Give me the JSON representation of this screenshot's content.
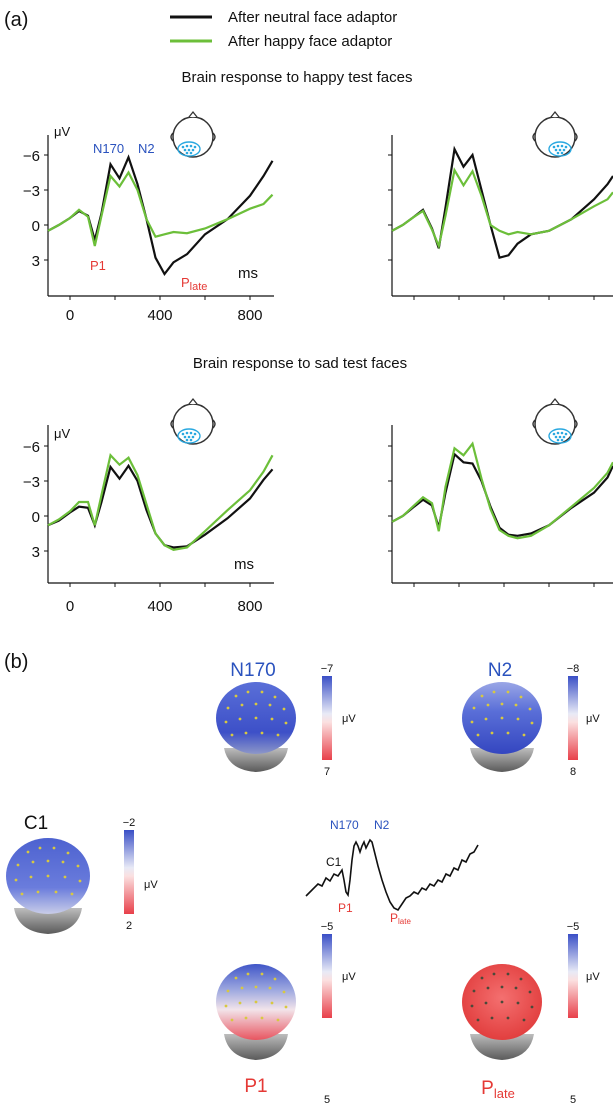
{
  "panel_a_label": "(a)",
  "panel_b_label": "(b)",
  "legend": [
    {
      "label": "After neutral face adaptor",
      "color": "#111111"
    },
    {
      "label": "After happy face adaptor",
      "color": "#6cbf3a"
    }
  ],
  "headings": {
    "happy": "Brain response to happy test faces",
    "sad": "Brain response to sad test faces"
  },
  "axis": {
    "y_unit": "μV",
    "x_unit": "ms",
    "y_ticks": [
      "−6",
      "−3",
      "0",
      "3"
    ],
    "x_ticks": [
      "0",
      "400",
      "800"
    ]
  },
  "erp_labels": {
    "n170": "N170",
    "n2": "N2",
    "p1": "P1",
    "plate_main": "P",
    "plate_sub": "late"
  },
  "chart_data": [
    {
      "type": "line",
      "id": "happy-left",
      "ylim": [
        5,
        -7
      ],
      "xlim": [
        -100,
        900
      ],
      "series": [
        {
          "name": "After neutral face adaptor",
          "x": [
            -100,
            -50,
            0,
            40,
            80,
            110,
            140,
            180,
            220,
            260,
            300,
            340,
            380,
            420,
            460,
            520,
            600,
            700,
            800,
            860,
            900
          ],
          "y": [
            0.5,
            0,
            -0.6,
            -1.2,
            -0.8,
            1.3,
            -1,
            -5.2,
            -4,
            -5.8,
            -3.5,
            -0.5,
            2.8,
            4.2,
            3.2,
            2.5,
            0.8,
            -0.5,
            -2.5,
            -4.2,
            -5.5
          ]
        },
        {
          "name": "After happy face adaptor",
          "x": [
            -100,
            -50,
            0,
            40,
            80,
            110,
            140,
            180,
            220,
            260,
            300,
            340,
            380,
            420,
            460,
            520,
            600,
            700,
            800,
            860,
            900
          ],
          "y": [
            0.5,
            0,
            -0.6,
            -1.3,
            -0.7,
            1.8,
            -0.8,
            -4.2,
            -3.3,
            -4.5,
            -3,
            -0.5,
            1,
            0.8,
            0.6,
            0.7,
            0.3,
            -0.5,
            -1.4,
            -1.8,
            -2.6
          ]
        }
      ]
    },
    {
      "type": "line",
      "id": "happy-right",
      "ylim": [
        5,
        -7
      ],
      "xlim": [
        -100,
        900
      ],
      "series": [
        {
          "name": "After neutral face adaptor",
          "x": [
            -100,
            -50,
            0,
            40,
            80,
            110,
            140,
            180,
            220,
            260,
            300,
            340,
            380,
            420,
            460,
            520,
            600,
            700,
            800,
            860,
            900
          ],
          "y": [
            0.5,
            0,
            -0.7,
            -1.3,
            0.3,
            2,
            -1.5,
            -6.5,
            -5,
            -6,
            -3,
            0,
            2.8,
            2.6,
            1.6,
            0.8,
            0.5,
            -0.5,
            -2.2,
            -3.5,
            -4.2
          ]
        },
        {
          "name": "After happy face adaptor",
          "x": [
            -100,
            -50,
            0,
            40,
            80,
            110,
            140,
            180,
            220,
            260,
            300,
            340,
            380,
            420,
            460,
            520,
            600,
            700,
            800,
            860,
            900
          ],
          "y": [
            0.5,
            0,
            -0.7,
            -1.2,
            0.4,
            1.8,
            -0.8,
            -4.7,
            -3.4,
            -4.6,
            -2.5,
            0,
            0.5,
            0.8,
            0.6,
            0.8,
            0.5,
            -0.5,
            -1.6,
            -2.2,
            -2.8
          ]
        }
      ]
    },
    {
      "type": "line",
      "id": "sad-left",
      "ylim": [
        5,
        -7
      ],
      "xlim": [
        -100,
        900
      ],
      "series": [
        {
          "name": "After neutral face adaptor",
          "x": [
            -100,
            -50,
            0,
            40,
            80,
            110,
            140,
            180,
            220,
            260,
            300,
            340,
            380,
            420,
            460,
            520,
            600,
            700,
            800,
            860,
            900
          ],
          "y": [
            0.8,
            0.4,
            -0.3,
            -0.8,
            -0.7,
            0.8,
            -1.2,
            -4.2,
            -3.2,
            -4.3,
            -3,
            -0.5,
            1.5,
            2.5,
            2.7,
            2.6,
            1.6,
            0.2,
            -1.5,
            -3.1,
            -4
          ]
        },
        {
          "name": "After happy face adaptor",
          "x": [
            -100,
            -50,
            0,
            40,
            80,
            110,
            140,
            180,
            220,
            260,
            300,
            340,
            380,
            420,
            460,
            520,
            600,
            700,
            800,
            860,
            900
          ],
          "y": [
            0.8,
            0.3,
            -0.4,
            -1.2,
            -1.2,
            0.8,
            -1.8,
            -5.2,
            -4.4,
            -5,
            -3.5,
            -1,
            1.5,
            2.5,
            2.9,
            2.7,
            1.3,
            -0.5,
            -2.2,
            -3.8,
            -5.2
          ]
        }
      ]
    },
    {
      "type": "line",
      "id": "sad-right",
      "ylim": [
        5,
        -7
      ],
      "xlim": [
        -100,
        900
      ],
      "series": [
        {
          "name": "After neutral face adaptor",
          "x": [
            -100,
            -50,
            0,
            40,
            80,
            110,
            140,
            180,
            220,
            260,
            300,
            340,
            380,
            420,
            460,
            520,
            600,
            700,
            800,
            860,
            900
          ],
          "y": [
            0.5,
            0,
            -0.8,
            -1.4,
            -0.9,
            1,
            -2,
            -5.3,
            -4.6,
            -4.5,
            -3,
            -0.8,
            1,
            1.6,
            1.7,
            1.5,
            0.8,
            -0.7,
            -2,
            -3.3,
            -4.3
          ]
        },
        {
          "name": "After happy face adaptor",
          "x": [
            -100,
            -50,
            0,
            40,
            80,
            110,
            140,
            180,
            220,
            260,
            300,
            340,
            380,
            420,
            460,
            520,
            600,
            700,
            800,
            860,
            900
          ],
          "y": [
            0.5,
            0,
            -0.9,
            -1.6,
            -1.1,
            1.3,
            -2.5,
            -5.8,
            -5.2,
            -6.2,
            -3.2,
            -0.6,
            1.2,
            1.7,
            1.9,
            1.7,
            0.8,
            -0.8,
            -2.4,
            -3.7,
            -4.6
          ]
        }
      ]
    }
  ],
  "topomaps": [
    {
      "id": "n170",
      "title": "N170",
      "title_color": "#2a52be",
      "top": "−7",
      "bottom": "7",
      "unit": "μV"
    },
    {
      "id": "n2",
      "title": "N2",
      "title_color": "#2a52be",
      "top": "−8",
      "bottom": "8",
      "unit": "μV"
    },
    {
      "id": "c1",
      "title": "C1",
      "title_color": "#111111",
      "top": "−2",
      "bottom": "2",
      "unit": "μV"
    },
    {
      "id": "p1",
      "title": "P1",
      "title_color": "#e53935",
      "top": "−5",
      "bottom": "5",
      "unit": "μV"
    },
    {
      "id": "plate",
      "title_main": "P",
      "title_sub": "late",
      "title_color": "#e53935",
      "top": "−5",
      "bottom": "5",
      "unit": "μV"
    }
  ],
  "schematic_labels": {
    "c1": "C1",
    "n170": "N170",
    "n2": "N2",
    "p1": "P1",
    "plate_main": "P",
    "plate_sub": "late"
  }
}
